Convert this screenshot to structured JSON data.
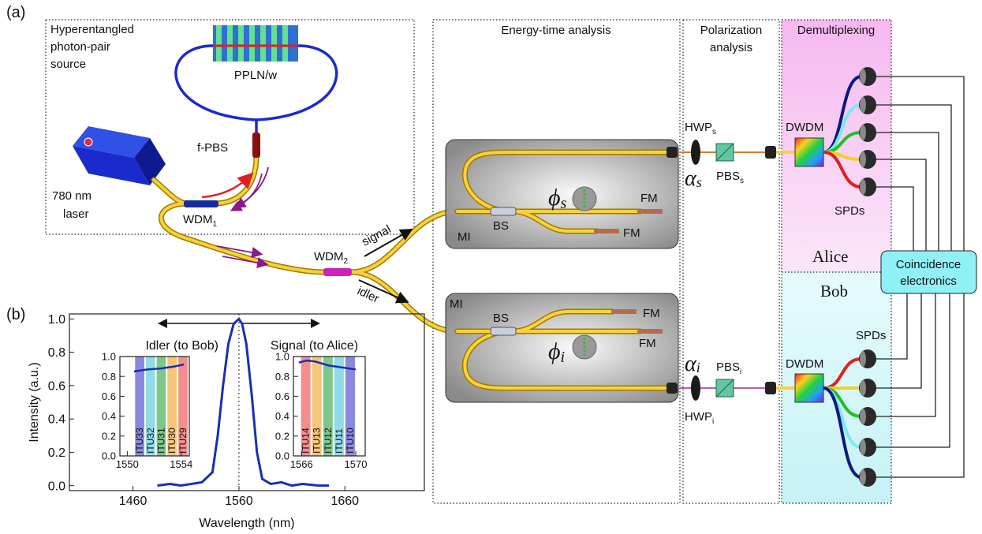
{
  "panel_labels": [
    "(a)",
    "(b)"
  ],
  "source": {
    "title": [
      "Hyperentangled",
      "photon-pair",
      "source"
    ],
    "crystal": "PPLN/w",
    "pbs": "f-PBS",
    "laser": [
      "780 nm",
      "laser"
    ],
    "wdm1": {
      "text": "WDM",
      "sub": "1"
    }
  },
  "links": {
    "wdm2": {
      "text": "WDM",
      "sub": "2"
    },
    "signal": "signal",
    "idler": "idler"
  },
  "sections": {
    "energy_time": "Energy-time analysis",
    "polarization": [
      "Polarization",
      "analysis"
    ],
    "demux": "Demultiplexing"
  },
  "interferometers": [
    {
      "label": "MI",
      "splitter": "BS",
      "mirrors": [
        "FM",
        "FM"
      ],
      "phase": {
        "symbol": "ϕ",
        "sub": "s"
      }
    },
    {
      "label": "MI",
      "splitter": "BS",
      "mirrors": [
        "FM",
        "FM"
      ],
      "phase": {
        "symbol": "ϕ",
        "sub": "i"
      }
    }
  ],
  "alice": {
    "name": "Alice",
    "hwp": {
      "text": "HWP",
      "sub": "s"
    },
    "angle": {
      "symbol": "α",
      "sub": "s"
    },
    "pbs": {
      "text": "PBS",
      "sub": "s"
    },
    "dwdm": "DWDM",
    "spds": "SPDs"
  },
  "bob": {
    "name": "Bob",
    "hwp": {
      "text": "HWP",
      "sub": "i"
    },
    "angle": {
      "symbol": "α",
      "sub": "i"
    },
    "pbs": {
      "text": "PBS",
      "sub": "i"
    },
    "dwdm": "DWDM",
    "spds": "SPDs"
  },
  "coincidence": [
    "Coincidence",
    "electronics"
  ],
  "chart_data": [
    {
      "type": "line",
      "xlabel": "Wavelength (nm)",
      "ylabel": "Intensity (a.u.)",
      "x": [
        1483,
        1495,
        1505,
        1515,
        1525,
        1535,
        1540,
        1545,
        1550,
        1555,
        1560,
        1563,
        1567,
        1572,
        1577,
        1582,
        1590,
        1600,
        1610,
        1620,
        1635,
        1645
      ],
      "values": [
        0,
        0.01,
        0,
        0.01,
        0.02,
        0.08,
        0.3,
        0.6,
        0.85,
        0.97,
        1.0,
        0.97,
        0.85,
        0.55,
        0.2,
        0.04,
        0.01,
        0.02,
        0.0,
        0.01,
        0.0,
        0.0
      ],
      "color": "#1a2fb0",
      "vline": 1560,
      "annotations": [
        "Idler (to Bob)",
        "Signal (to Alice)"
      ],
      "xlim": [
        1400,
        1735
      ],
      "ylim": [
        -0.03,
        1.03
      ],
      "xticks": [
        1460,
        1560,
        1660
      ],
      "yticks": [
        {
          "value": 0,
          "label": "0.0"
        },
        0.2,
        0.4,
        0.6,
        0.8,
        {
          "value": 1,
          "label": "1.0"
        }
      ]
    },
    {
      "type": "band",
      "categories": [
        "ITU33",
        "ITU32",
        "ITU31",
        "ITU30",
        "ITU29"
      ],
      "bins": [
        1550.52,
        1551.32,
        1552.12,
        1552.92,
        1553.73,
        1554.53
      ],
      "band_colors": [
        "#4a4ad0",
        "#55c8d8",
        "#3aa84a",
        "#f0a830",
        "#f05050"
      ],
      "x": [
        1550.5,
        1551.5,
        1552.5,
        1553.5,
        1554.2
      ],
      "values": [
        0.85,
        0.87,
        0.88,
        0.9,
        0.92
      ],
      "color": "#1a2fb0",
      "xlim": [
        1549.45,
        1554.6
      ],
      "ylim": [
        0,
        1.0
      ],
      "xticks": [
        1550,
        1554
      ],
      "yticks": [
        {
          "value": 0,
          "label": "0.0"
        },
        0.2,
        0.4,
        0.6,
        0.8,
        {
          "value": 1,
          "label": "1.0"
        }
      ]
    },
    {
      "type": "band",
      "categories": [
        "ITU14",
        "ITU13",
        "ITU12",
        "ITU11",
        "ITU10"
      ],
      "bins": [
        1565.9,
        1566.72,
        1567.54,
        1568.36,
        1569.18,
        1570.0
      ],
      "band_colors": [
        "#f05050",
        "#f0a830",
        "#3aa84a",
        "#55c8d8",
        "#4a4ad0"
      ],
      "x": [
        1565.8,
        1566.4,
        1567.0,
        1568.0,
        1569.0,
        1570.0
      ],
      "values": [
        0.94,
        0.96,
        0.95,
        0.91,
        0.89,
        0.87
      ],
      "color": "#1a2fb0",
      "xlim": [
        1565.4,
        1570.7
      ],
      "ylim": [
        0,
        1.0
      ],
      "xticks": [
        1566,
        1570
      ],
      "yticks": [
        {
          "value": 0,
          "label": "0.0"
        },
        0.2,
        0.4,
        0.6,
        0.8,
        {
          "value": 1,
          "label": "1.0"
        }
      ]
    }
  ]
}
